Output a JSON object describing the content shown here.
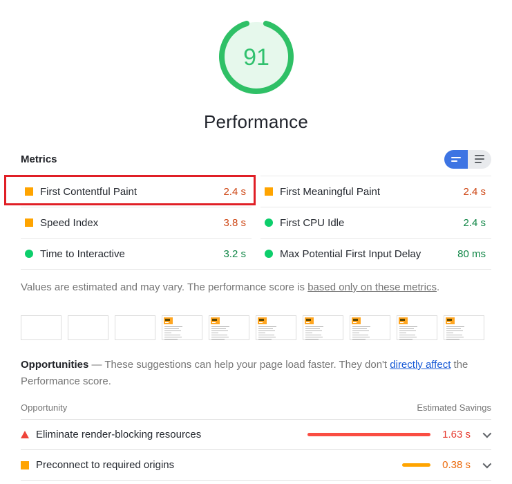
{
  "score": {
    "value": "91",
    "label": "Performance"
  },
  "metrics": {
    "heading": "Metrics",
    "items": [
      {
        "label": "First Contentful Paint",
        "value": "2.4 s",
        "rating": "average",
        "highlighted": true
      },
      {
        "label": "First Meaningful Paint",
        "value": "2.4 s",
        "rating": "average",
        "highlighted": false
      },
      {
        "label": "Speed Index",
        "value": "3.8 s",
        "rating": "average",
        "highlighted": false
      },
      {
        "label": "First CPU Idle",
        "value": "2.4 s",
        "rating": "pass",
        "highlighted": false
      },
      {
        "label": "Time to Interactive",
        "value": "3.2 s",
        "rating": "pass",
        "highlighted": false
      },
      {
        "label": "Max Potential First Input Delay",
        "value": "80 ms",
        "rating": "pass",
        "highlighted": false
      }
    ],
    "disclaimer": {
      "text": "Values are estimated and may vary. The performance score is ",
      "link": "based only on these metrics",
      "suffix": "."
    }
  },
  "filmstrip": {
    "frames": [
      "blank",
      "blank",
      "blank",
      "content",
      "content",
      "content",
      "content",
      "content",
      "content",
      "content"
    ]
  },
  "opportunities": {
    "heading": "Opportunities",
    "description_before": " — These suggestions can help your page load faster. They don't ",
    "link": "directly affect",
    "description_after": " the Performance score.",
    "table_header": {
      "col1": "Opportunity",
      "col2": "Estimated Savings"
    },
    "rows": [
      {
        "label": "Eliminate render-blocking resources",
        "value": "1.63 s",
        "seconds": 1.63,
        "rating": "fail"
      },
      {
        "label": "Preconnect to required origins",
        "value": "0.38 s",
        "seconds": 0.38,
        "rating": "average"
      }
    ],
    "max_seconds": 1.63
  },
  "colors": {
    "score_green": "#2FC066",
    "score_fill": "#E6F8EC",
    "pass_green": "#0CCE6B",
    "pass_text_green": "#108646",
    "average_orange": "#FFA400",
    "average_text_orange": "#CE4715",
    "fail_red": "#FA4D42",
    "fail_text_red": "#E5392E",
    "highlight_red": "#E01F26",
    "toggle_blue": "#3D74E3",
    "link_blue": "#1558D6"
  }
}
